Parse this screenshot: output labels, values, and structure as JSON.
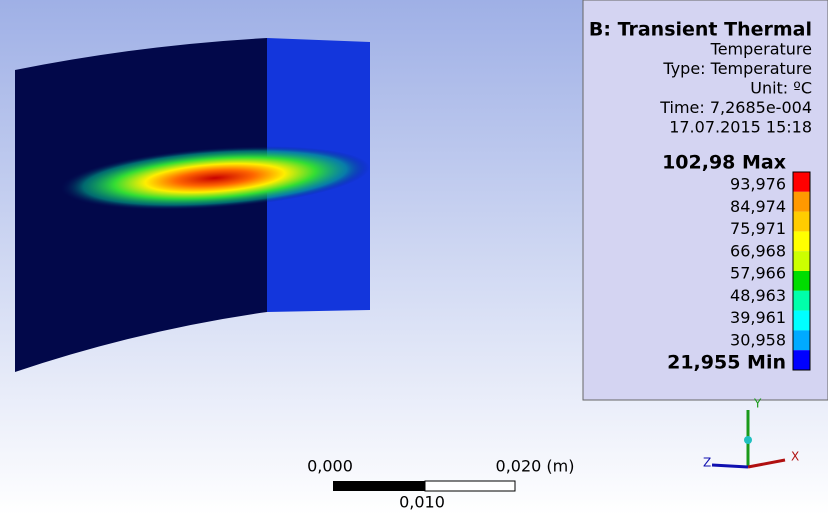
{
  "legend": {
    "title": "B: Transient Thermal",
    "lines": [
      "Temperature",
      "Type: Temperature",
      "Unit: ºC",
      "Time: 7,2685e-004",
      "17.07.2015 15:18"
    ],
    "labels": [
      "102,98 Max",
      "93,976",
      "84,974",
      "75,971",
      "66,968",
      "57,966",
      "48,963",
      "39,961",
      "30,958",
      "21,955 Min"
    ],
    "colors": [
      "#ff0000",
      "#ff9900",
      "#ffcc00",
      "#ffff00",
      "#ccff00",
      "#00dd00",
      "#00ffaa",
      "#00ffff",
      "#00aaff",
      "#0000ff"
    ]
  },
  "scale_bar": {
    "left": "0,000",
    "right": "0,020 (m)",
    "middle": "0,010"
  },
  "triad": {
    "y": "Y",
    "x": "X",
    "z": "Z"
  }
}
